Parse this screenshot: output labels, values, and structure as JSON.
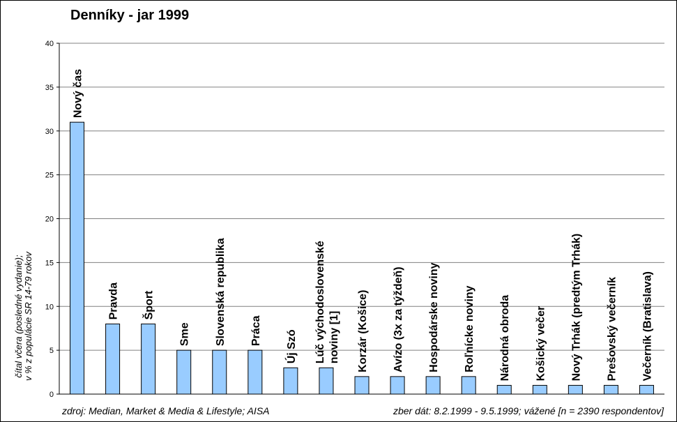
{
  "chart_data": {
    "type": "bar",
    "title": "Denníky - jar 1999",
    "ylabel": [
      "čítal včera (posledné vydanie);",
      "v % z populácie SR 14-79 rokov"
    ],
    "xlabel": "",
    "ylim": [
      0,
      40
    ],
    "yticks": [
      0,
      5,
      10,
      15,
      20,
      25,
      30,
      35,
      40
    ],
    "grid": true,
    "legend": "none",
    "bar_color": "#99ccff",
    "categories": [
      [
        "Nový čas"
      ],
      [
        "Pravda"
      ],
      [
        "Šport"
      ],
      [
        "Sme"
      ],
      [
        "Slovenská republika"
      ],
      [
        "Práca"
      ],
      [
        "Új Szó"
      ],
      [
        "Lúč východoslovenské",
        "noviny [1]"
      ],
      [
        "Korzár (Košice)"
      ],
      [
        "Avízo (3x za týždeň)"
      ],
      [
        "Hospodárske noviny"
      ],
      [
        "Roľnícke noviny"
      ],
      [
        "Národná obroda"
      ],
      [
        "Košický večer"
      ],
      [
        "Nový Trhák (predtým Trhák)"
      ],
      [
        "Prešovský večerník"
      ],
      [
        "Večerník (Bratislava)"
      ]
    ],
    "values": [
      31,
      8,
      8,
      5,
      5,
      5,
      3,
      3,
      2,
      2,
      2,
      2,
      1,
      1,
      1,
      1,
      1
    ]
  },
  "footer": {
    "source": "zdroj: Median, Market & Media & Lifestyle; AISA",
    "collection": "zber dát: 8.2.1999 - 9.5.1999; vážené [n = 2390 respondentov]"
  }
}
